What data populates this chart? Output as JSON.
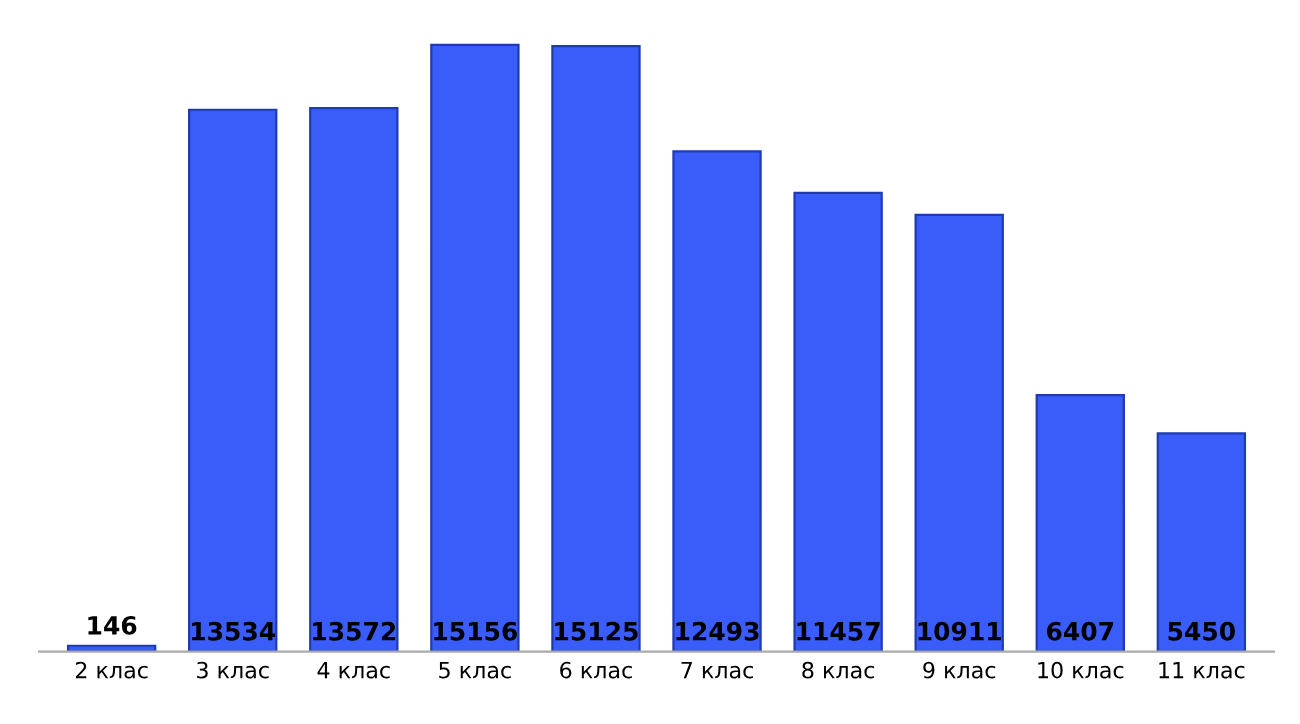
{
  "chart_data": {
    "type": "bar",
    "categories": [
      "2 клас",
      "3 клас",
      "4 клас",
      "5 клас",
      "6 клас",
      "7 клас",
      "8 клас",
      "9 клас",
      "10 клас",
      "11 клас"
    ],
    "values": [
      146,
      13534,
      13572,
      15156,
      15125,
      12493,
      11457,
      10911,
      6407,
      5450
    ],
    "color": "#3a5cf8",
    "data_labels": true,
    "grid": false,
    "legend": false
  }
}
